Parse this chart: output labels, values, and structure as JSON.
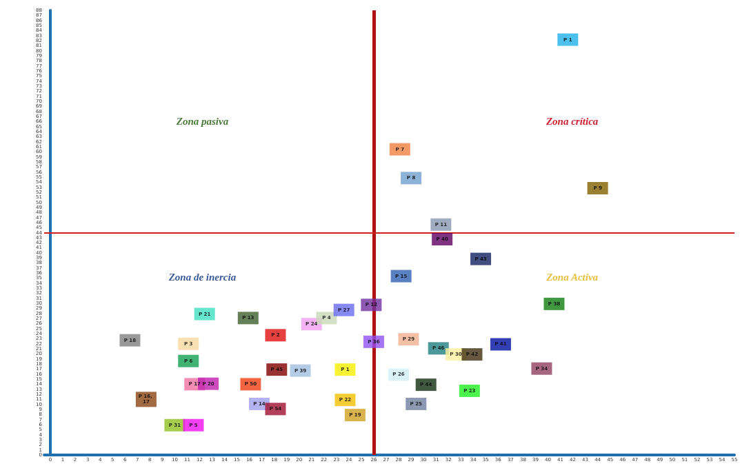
{
  "chart_data": {
    "type": "scatter",
    "marker": "square",
    "grid": false,
    "x": [
      12.4,
      15.9,
      6.4,
      11.1,
      11.1,
      11.6,
      12.7,
      7.7,
      10.0,
      11.5,
      18.1,
      18.2,
      20.1,
      16.1,
      16.8,
      18.1,
      21.0,
      22.2,
      23.6,
      25.8,
      26.0,
      23.7,
      23.7,
      24.5,
      28.2,
      28.8,
      31.2,
      32.6,
      33.9,
      36.2,
      39.5,
      28.0,
      30.2,
      33.7,
      29.4,
      40.5,
      34.6,
      31.4,
      31.5,
      28.1,
      29.0,
      41.6,
      44.0
    ],
    "values": [
      27.9,
      27.1,
      22.7,
      22.0,
      18.6,
      14.0,
      14.1,
      11.0,
      5.9,
      5.9,
      23.7,
      16.9,
      16.7,
      14.0,
      10.1,
      9.1,
      25.9,
      27.1,
      28.7,
      29.7,
      22.4,
      16.9,
      10.9,
      7.9,
      35.4,
      22.9,
      21.1,
      19.9,
      19.9,
      21.9,
      17.1,
      15.9,
      13.9,
      12.7,
      10.1,
      29.9,
      38.8,
      45.6,
      42.7,
      60.5,
      54.8,
      82.2,
      52.8
    ],
    "value_labels": [
      "P 21",
      "P 13",
      "P 18",
      "P 3",
      "P 6",
      "P 17",
      "P 20",
      "P 16, 17",
      "P 31",
      "P 5",
      "P 2",
      "P 45",
      "P 39",
      "P 50",
      "P 14",
      "P 54",
      "P 24",
      "P 4",
      "P 27",
      "P 12",
      "P 36",
      "P 1",
      "P 22",
      "P 19",
      "P 15",
      "P 29",
      "P 46",
      "P 30",
      "P 42",
      "P 41",
      "P 34",
      "P 26",
      "P 44",
      "P 23",
      "P 25",
      "P 38",
      "P 43",
      "P 11",
      "P 40",
      "P 7",
      "P 8",
      "P 1",
      "P 9"
    ],
    "colors": [
      "#3ee0c0",
      "#3f5f2f",
      "#808080",
      "#f8d8a0",
      "#10a050",
      "#f070a0",
      "#c020b0",
      "#8b4513",
      "#90c020",
      "#f010f0",
      "#e01010",
      "#800000",
      "#a0c0e0",
      "#f04010",
      "#a0a0f0",
      "#a01030",
      "#f0a0f0",
      "#c8d8b8",
      "#6a6af0",
      "#7030a0",
      "#9050f0",
      "#f8f000",
      "#f0c000",
      "#d0a020",
      "#3060b0",
      "#f0b090",
      "#208080",
      "#fff0a0",
      "#403010",
      "#0010a0",
      "#904060",
      "#d0f0f8",
      "#103010",
      "#20f020",
      "#7080a0",
      "#108010",
      "#102060",
      "#8898b0",
      "#600060",
      "#f08040",
      "#70a0d0",
      "#20b0e8",
      "#806000"
    ],
    "xlim": [
      -0.5,
      55
    ],
    "ylim": [
      0,
      88
    ],
    "xticks": [
      0,
      1,
      2,
      3,
      4,
      5,
      6,
      7,
      8,
      9,
      10,
      11,
      12,
      13,
      14,
      15,
      16,
      17,
      18,
      19,
      20,
      21,
      22,
      23,
      24,
      25,
      26,
      27,
      28,
      29,
      30,
      31,
      32,
      33,
      34,
      35,
      36,
      37,
      38,
      39,
      40,
      41,
      42,
      43,
      44,
      45,
      46,
      47,
      48,
      49,
      50,
      51,
      52,
      53,
      54,
      55
    ],
    "yticks": [
      0,
      1,
      2,
      3,
      4,
      5,
      6,
      7,
      8,
      9,
      10,
      11,
      12,
      13,
      14,
      15,
      16,
      17,
      18,
      19,
      20,
      21,
      22,
      23,
      24,
      25,
      26,
      27,
      28,
      29,
      30,
      31,
      32,
      33,
      34,
      35,
      36,
      37,
      38,
      39,
      40,
      41,
      42,
      43,
      44,
      45,
      46,
      47,
      48,
      49,
      50,
      51,
      52,
      53,
      54,
      55,
      56,
      57,
      58,
      59,
      60,
      61,
      62,
      63,
      64,
      65,
      66,
      67,
      68,
      69,
      70,
      71,
      72,
      73,
      74,
      75,
      76,
      77,
      78,
      79,
      80,
      81,
      82,
      83,
      84,
      85,
      86,
      87,
      88
    ],
    "ref_lines": [
      {
        "axis": "x",
        "value": 26,
        "color": "#b01010"
      },
      {
        "axis": "y",
        "value": 44,
        "color": "#d02020"
      }
    ],
    "annotations": [
      "Zona pasiva",
      "Zona crítica",
      "Zona de inercia",
      "Zona Activa"
    ]
  }
}
